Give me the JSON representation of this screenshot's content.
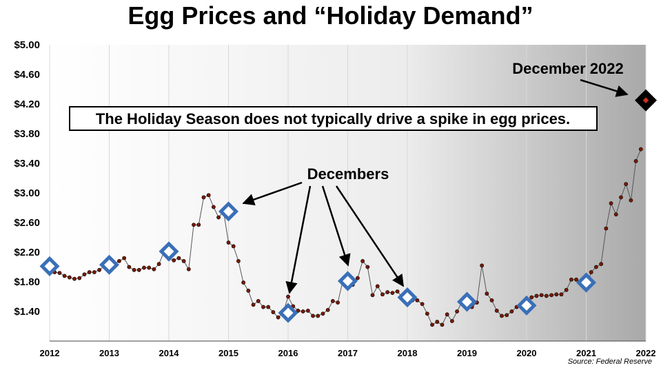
{
  "chart_data": {
    "type": "line",
    "title": "Egg Prices and “Holiday Demand”",
    "xlabel": "",
    "ylabel": "",
    "xlim": [
      2012,
      2022
    ],
    "ylim": [
      1.0,
      5.0
    ],
    "grid": "vertical",
    "x_ticks": [
      "2012",
      "2013",
      "2014",
      "2015",
      "2016",
      "2017",
      "2018",
      "2019",
      "2020",
      "2021",
      "2022"
    ],
    "y_ticks": [
      "$5.00",
      "$4.60",
      "$4.20",
      "$3.80",
      "$3.40",
      "$3.00",
      "$2.60",
      "$2.20",
      "$1.80",
      "$1.40"
    ],
    "y_tick_values": [
      5.0,
      4.6,
      4.2,
      3.8,
      3.4,
      3.0,
      2.6,
      2.2,
      1.8,
      1.4
    ],
    "colors": {
      "line": "#555555",
      "point": "#7a1a00",
      "december_marker": "#3a6fb8",
      "highlight_marker": "#000000",
      "highlight_center": "#d03020"
    },
    "series": [
      {
        "x": [
          "2012-01",
          "2012-02",
          "2012-03",
          "2012-04",
          "2012-05",
          "2012-06",
          "2012-07",
          "2012-08",
          "2012-09",
          "2012-10",
          "2012-11",
          "2012-12",
          "2013-01",
          "2013-02",
          "2013-03",
          "2013-04",
          "2013-05",
          "2013-06",
          "2013-07",
          "2013-08",
          "2013-09",
          "2013-10",
          "2013-11",
          "2013-12",
          "2014-01",
          "2014-02",
          "2014-03",
          "2014-04",
          "2014-05",
          "2014-06",
          "2014-07",
          "2014-08",
          "2014-09",
          "2014-10",
          "2014-11",
          "2014-12",
          "2015-01",
          "2015-02",
          "2015-03",
          "2015-04",
          "2015-05",
          "2015-06",
          "2015-07",
          "2015-08",
          "2015-09",
          "2015-10",
          "2015-11",
          "2015-12",
          "2016-01",
          "2016-02",
          "2016-03",
          "2016-04",
          "2016-05",
          "2016-06",
          "2016-07",
          "2016-08",
          "2016-09",
          "2016-10",
          "2016-11",
          "2016-12",
          "2017-01",
          "2017-02",
          "2017-03",
          "2017-04",
          "2017-05",
          "2017-06",
          "2017-07",
          "2017-08",
          "2017-09",
          "2017-10",
          "2017-11",
          "2017-12",
          "2018-01",
          "2018-02",
          "2018-03",
          "2018-04",
          "2018-05",
          "2018-06",
          "2018-07",
          "2018-08",
          "2018-09",
          "2018-10",
          "2018-11",
          "2018-12",
          "2019-01",
          "2019-02",
          "2019-03",
          "2019-04",
          "2019-05",
          "2019-06",
          "2019-07",
          "2019-08",
          "2019-09",
          "2019-10",
          "2019-11",
          "2019-12",
          "2020-01",
          "2020-02",
          "2020-03",
          "2020-04",
          "2020-05",
          "2020-06",
          "2020-07",
          "2020-08",
          "2020-09",
          "2020-10",
          "2020-11",
          "2020-12",
          "2021-01",
          "2021-02",
          "2021-03",
          "2021-04",
          "2021-05",
          "2021-06",
          "2021-07",
          "2021-08",
          "2021-09",
          "2021-10",
          "2021-11",
          "2021-12"
        ],
        "values": [
          1.96,
          1.93,
          1.92,
          1.88,
          1.86,
          1.84,
          1.85,
          1.9,
          1.93,
          1.93,
          1.96,
          2.01,
          2.01,
          2.04,
          2.08,
          2.12,
          2.0,
          1.96,
          1.96,
          1.99,
          1.99,
          1.97,
          2.04,
          2.2,
          2.11,
          2.09,
          2.12,
          2.08,
          1.97,
          2.57,
          2.57,
          2.94,
          2.97,
          2.81,
          2.67,
          2.75,
          2.33,
          2.28,
          2.08,
          1.79,
          1.68,
          1.49,
          1.54,
          1.46,
          1.46,
          1.39,
          1.32,
          1.38,
          1.6,
          1.47,
          1.41,
          1.4,
          1.41,
          1.34,
          1.34,
          1.37,
          1.42,
          1.54,
          1.52,
          1.81,
          1.76,
          1.76,
          1.85,
          2.08,
          2.0,
          1.62,
          1.74,
          1.63,
          1.66,
          1.65,
          1.67,
          1.59,
          1.58,
          1.55,
          1.55,
          1.5,
          1.37,
          1.22,
          1.26,
          1.22,
          1.36,
          1.27,
          1.4,
          1.53,
          1.45,
          1.46,
          1.52,
          2.02,
          1.64,
          1.55,
          1.41,
          1.34,
          1.35,
          1.4,
          1.46,
          1.47,
          1.51,
          1.59,
          1.61,
          1.62,
          1.61,
          1.62,
          1.63,
          1.63,
          1.69,
          1.83,
          1.83,
          1.79,
          1.7,
          1.93,
          2.0,
          2.04,
          2.52,
          2.86,
          2.71,
          2.94,
          3.12,
          2.9,
          3.43,
          3.59
        ]
      }
    ],
    "december_points": [
      {
        "x": "2012-01",
        "y": 2.01
      },
      {
        "x": "2013-01",
        "y": 2.03
      },
      {
        "x": "2014-01",
        "y": 2.21
      },
      {
        "x": "2015-01",
        "y": 2.75
      },
      {
        "x": "2016-01",
        "y": 1.38
      },
      {
        "x": "2017-01",
        "y": 1.81
      },
      {
        "x": "2018-01",
        "y": 1.59
      },
      {
        "x": "2019-01",
        "y": 1.53
      },
      {
        "x": "2020-01",
        "y": 1.48
      },
      {
        "x": "2021-01",
        "y": 1.79
      }
    ],
    "highlight_point": {
      "x": "2022-01",
      "y": 4.25
    },
    "annotations": {
      "headline": "The Holiday Season does not typically drive a spike in egg prices.",
      "december_2022": "December 2022",
      "decembers": "Decembers",
      "source": "Source: Federal Reserve"
    }
  }
}
